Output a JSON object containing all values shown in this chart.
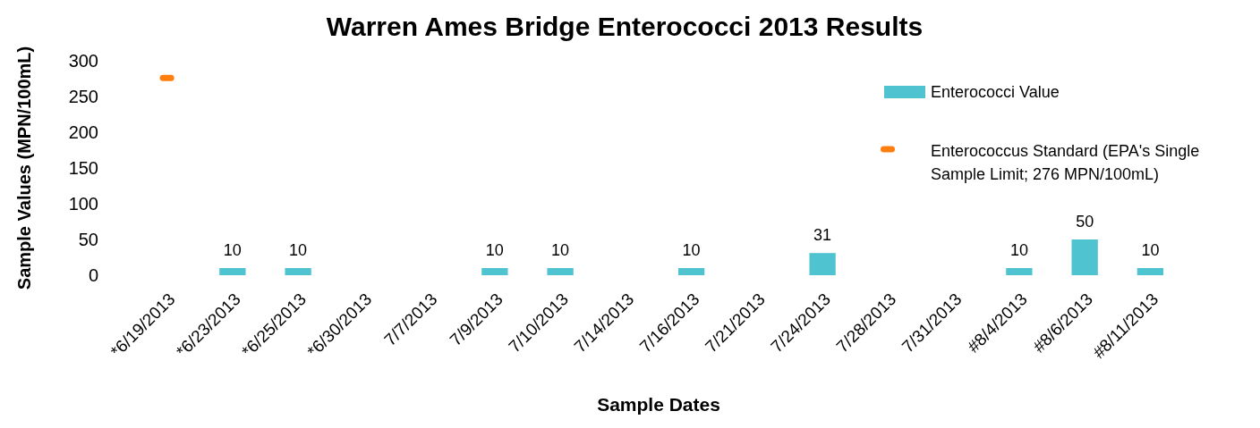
{
  "chart_data": {
    "type": "bar",
    "title": "Warren Ames Bridge Enterococci 2013 Results",
    "xlabel": "Sample Dates",
    "ylabel": "Sample Values (MPN/100mL)",
    "categories": [
      "*6/19/2013",
      "*6/23/2013",
      "*6/25/2013",
      "*6/30/2013",
      "7/7/2013",
      "7/9/2013",
      "7/10/2013",
      "7/14/2013",
      "7/16/2013",
      "7/21/2013",
      "7/24/2013",
      "7/28/2013",
      "7/31/2013",
      "#8/4/2013",
      "#8/6/2013",
      "#8/11/2013"
    ],
    "series": [
      {
        "name": "Enterococci Value",
        "color": "#4fc3cf",
        "values": [
          null,
          10,
          10,
          null,
          null,
          10,
          10,
          null,
          10,
          null,
          31,
          null,
          null,
          10,
          50,
          10
        ],
        "value_labels": [
          null,
          "10",
          "10",
          null,
          null,
          "10",
          "10",
          null,
          "10",
          null,
          "31",
          null,
          null,
          "10",
          "50",
          "10"
        ]
      },
      {
        "name": "Enterococcus Standard (EPA's Single Sample Limit; 276 MPN/100mL)",
        "type": "scatter",
        "color": "#ff7f0e",
        "values": [
          276,
          null,
          null,
          null,
          null,
          null,
          null,
          null,
          null,
          null,
          null,
          null,
          null,
          null,
          null,
          null
        ]
      }
    ],
    "ylim": [
      0,
      300
    ],
    "yticks": [
      0,
      50,
      100,
      150,
      200,
      250,
      300
    ],
    "grid": false,
    "legend": "top right",
    "marker": "square"
  }
}
